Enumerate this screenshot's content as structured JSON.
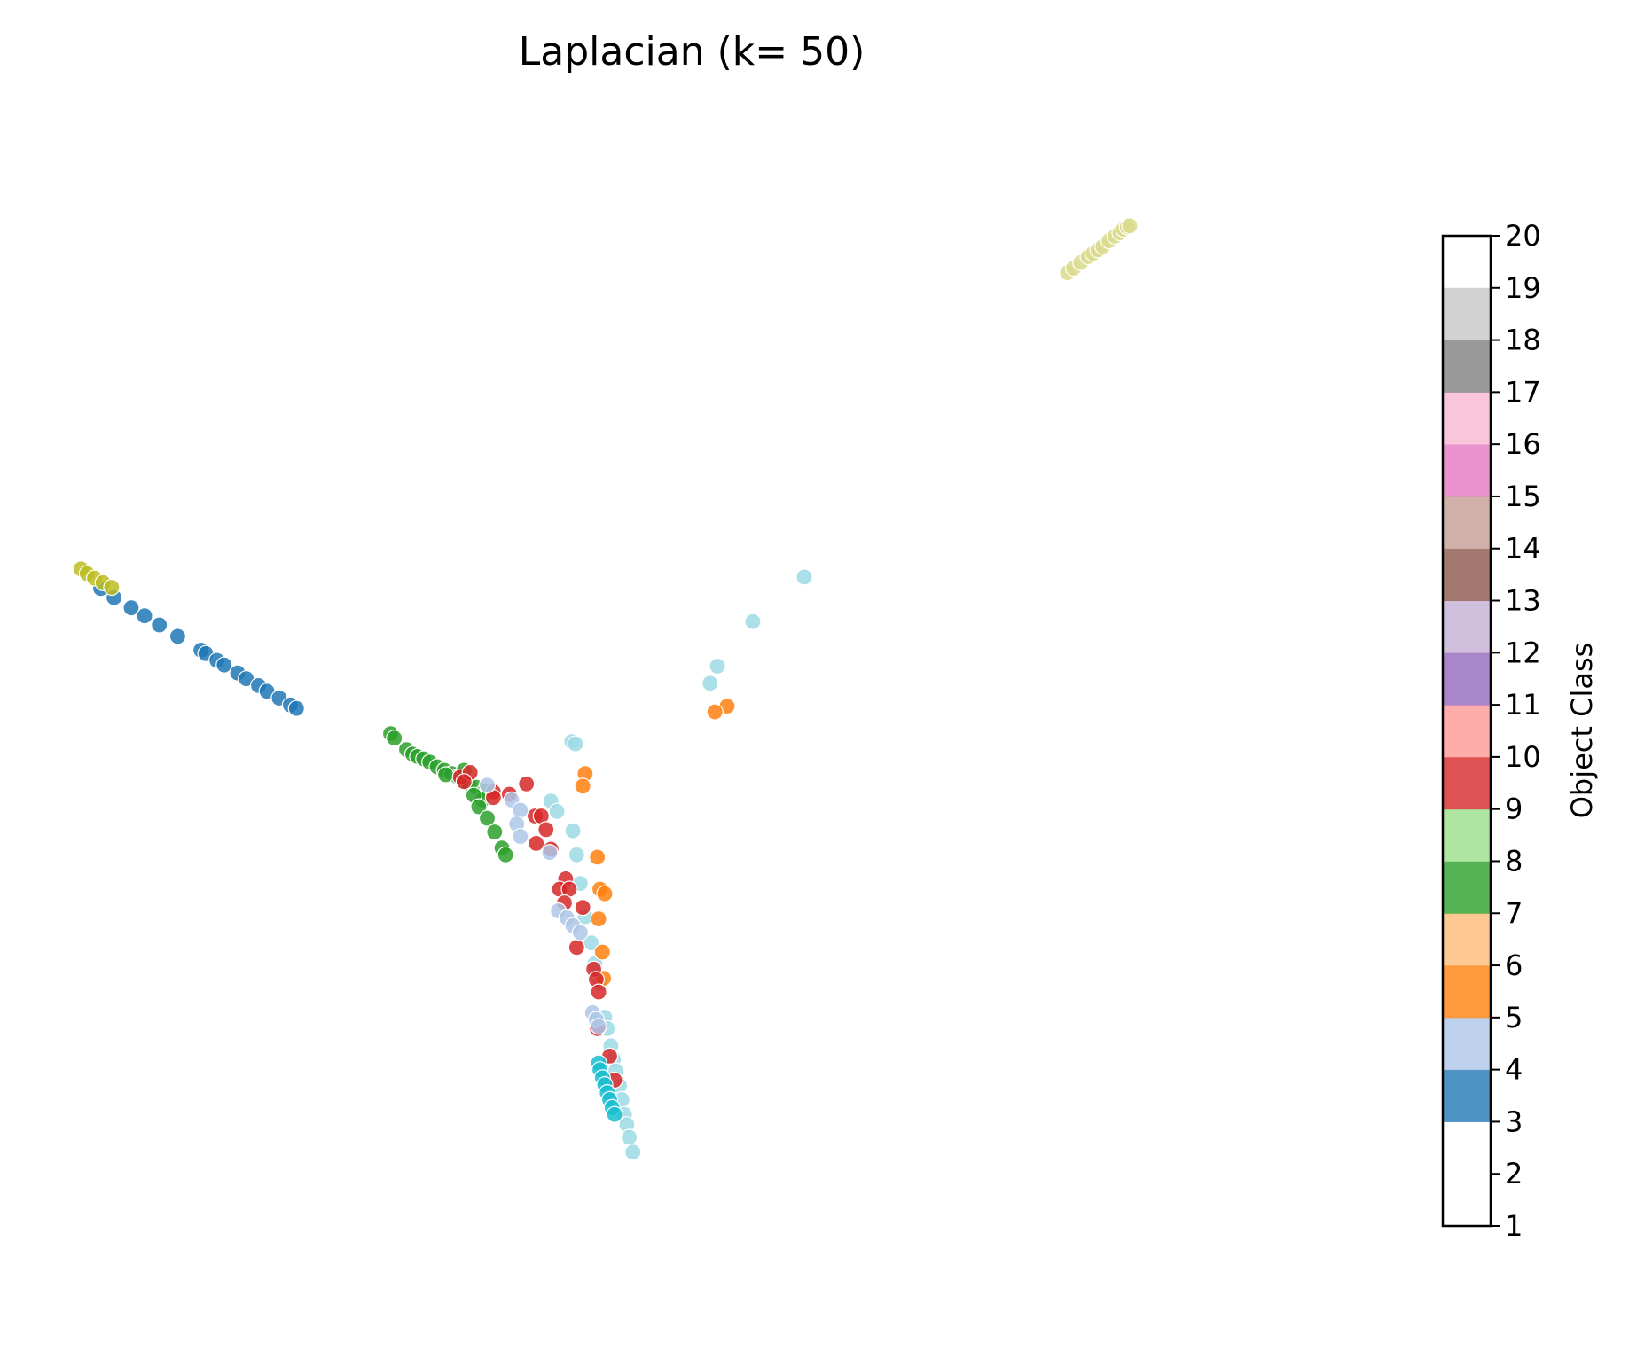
{
  "chart_data": {
    "type": "scatter",
    "title": "Laplacian (k= 50)",
    "xlabel": "",
    "ylabel": "",
    "axes_visible": false,
    "grid": false,
    "xlim": [
      0,
      1
    ],
    "ylim": [
      0,
      1
    ],
    "colorbar": {
      "label": "Object Class",
      "range": [
        1,
        20
      ],
      "ticks": [
        "1",
        "2",
        "3",
        "4",
        "5",
        "6",
        "7",
        "8",
        "9",
        "10",
        "11",
        "12",
        "13",
        "14",
        "15",
        "16",
        "17",
        "18",
        "19",
        "20"
      ],
      "class_colors": {
        "4": "#1f77b4",
        "5": "#aec7e8",
        "6": "#ff7f0e",
        "7": "#ffbb78",
        "8": "#2ca02c",
        "9": "#98df8a",
        "10": "#d62728",
        "11": "#ff9896",
        "12": "#9467bd",
        "13": "#c5b0d5",
        "14": "#8c564b",
        "15": "#c49c94",
        "16": "#e377c2",
        "17": "#f7b6d2",
        "18": "#7f7f7f",
        "19": "#c7c7c7",
        "20": "#bcbd22"
      }
    },
    "marker_colors": {
      "17": "#dbdb8d",
      "4": "#1f77b4",
      "16": "#bcbd22",
      "19": "#9edae5",
      "6": "#ff7f0e",
      "7": "#2ca02c",
      "9": "#d62728",
      "5": "#aec7e8",
      "18": "#17becf"
    },
    "series": [
      {
        "class": 17,
        "points": [
          [
            0.807,
            0.901
          ],
          [
            0.812,
            0.905
          ],
          [
            0.818,
            0.91
          ],
          [
            0.824,
            0.915
          ],
          [
            0.828,
            0.918
          ],
          [
            0.832,
            0.921
          ],
          [
            0.836,
            0.924
          ],
          [
            0.841,
            0.929
          ],
          [
            0.846,
            0.933
          ],
          [
            0.85,
            0.936
          ],
          [
            0.853,
            0.939
          ],
          [
            0.856,
            0.941
          ],
          [
            0.858,
            0.942
          ]
        ]
      },
      {
        "class": 4,
        "points": [
          [
            0.017,
            0.625
          ],
          [
            0.028,
            0.617
          ],
          [
            0.042,
            0.608
          ],
          [
            0.053,
            0.601
          ],
          [
            0.065,
            0.593
          ],
          [
            0.08,
            0.583
          ],
          [
            0.099,
            0.571
          ],
          [
            0.103,
            0.568
          ],
          [
            0.112,
            0.562
          ],
          [
            0.118,
            0.558
          ],
          [
            0.129,
            0.551
          ],
          [
            0.136,
            0.546
          ],
          [
            0.146,
            0.54
          ],
          [
            0.153,
            0.535
          ],
          [
            0.163,
            0.529
          ],
          [
            0.172,
            0.523
          ],
          [
            0.177,
            0.52
          ]
        ]
      },
      {
        "class": 16,
        "points": [
          [
            0.001,
            0.642
          ],
          [
            0.006,
            0.638
          ],
          [
            0.012,
            0.634
          ],
          [
            0.019,
            0.63
          ],
          [
            0.026,
            0.626
          ]
        ]
      },
      {
        "class": 19,
        "points": [
          [
            0.592,
            0.635
          ],
          [
            0.55,
            0.596
          ],
          [
            0.521,
            0.557
          ],
          [
            0.515,
            0.542
          ],
          [
            0.402,
            0.491
          ],
          [
            0.405,
            0.489
          ],
          [
            0.385,
            0.439
          ],
          [
            0.39,
            0.43
          ],
          [
            0.403,
            0.413
          ],
          [
            0.406,
            0.392
          ],
          [
            0.409,
            0.367
          ],
          [
            0.413,
            0.338
          ],
          [
            0.418,
            0.315
          ],
          [
            0.421,
            0.297
          ],
          [
            0.425,
            0.28
          ],
          [
            0.429,
            0.25
          ],
          [
            0.431,
            0.24
          ],
          [
            0.434,
            0.225
          ],
          [
            0.436,
            0.213
          ],
          [
            0.438,
            0.203
          ],
          [
            0.441,
            0.19
          ],
          [
            0.443,
            0.178
          ],
          [
            0.445,
            0.165
          ],
          [
            0.447,
            0.156
          ],
          [
            0.449,
            0.145
          ],
          [
            0.452,
            0.132
          ]
        ]
      },
      {
        "class": 6,
        "points": [
          [
            0.529,
            0.522
          ],
          [
            0.519,
            0.517
          ],
          [
            0.413,
            0.463
          ],
          [
            0.411,
            0.452
          ],
          [
            0.423,
            0.39
          ],
          [
            0.425,
            0.362
          ],
          [
            0.429,
            0.358
          ],
          [
            0.424,
            0.336
          ],
          [
            0.427,
            0.307
          ],
          [
            0.428,
            0.284
          ]
        ]
      },
      {
        "class": 7,
        "points": [
          [
            0.254,
            0.498
          ],
          [
            0.257,
            0.494
          ],
          [
            0.267,
            0.484
          ],
          [
            0.272,
            0.48
          ],
          [
            0.276,
            0.478
          ],
          [
            0.281,
            0.476
          ],
          [
            0.286,
            0.473
          ],
          [
            0.292,
            0.469
          ],
          [
            0.298,
            0.466
          ],
          [
            0.304,
            0.463
          ],
          [
            0.309,
            0.46
          ],
          [
            0.314,
            0.457
          ],
          [
            0.318,
            0.454
          ],
          [
            0.324,
            0.451
          ],
          [
            0.331,
            0.448
          ],
          [
            0.329,
            0.44
          ],
          [
            0.314,
            0.466
          ],
          [
            0.299,
            0.462
          ],
          [
            0.322,
            0.444
          ],
          [
            0.326,
            0.434
          ],
          [
            0.333,
            0.424
          ],
          [
            0.339,
            0.412
          ],
          [
            0.345,
            0.398
          ],
          [
            0.348,
            0.392
          ]
        ]
      },
      {
        "class": 9,
        "points": [
          [
            0.311,
            0.46
          ],
          [
            0.319,
            0.464
          ],
          [
            0.314,
            0.456
          ],
          [
            0.338,
            0.447
          ],
          [
            0.338,
            0.442
          ],
          [
            0.351,
            0.445
          ],
          [
            0.365,
            0.454
          ],
          [
            0.372,
            0.426
          ],
          [
            0.377,
            0.426
          ],
          [
            0.381,
            0.414
          ],
          [
            0.373,
            0.402
          ],
          [
            0.385,
            0.397
          ],
          [
            0.397,
            0.371
          ],
          [
            0.392,
            0.362
          ],
          [
            0.4,
            0.362
          ],
          [
            0.396,
            0.35
          ],
          [
            0.411,
            0.346
          ],
          [
            0.406,
            0.311
          ],
          [
            0.42,
            0.292
          ],
          [
            0.422,
            0.283
          ],
          [
            0.424,
            0.272
          ],
          [
            0.423,
            0.24
          ],
          [
            0.433,
            0.216
          ],
          [
            0.437,
            0.195
          ]
        ]
      },
      {
        "class": 5,
        "points": [
          [
            0.333,
            0.453
          ],
          [
            0.353,
            0.44
          ],
          [
            0.36,
            0.431
          ],
          [
            0.357,
            0.419
          ],
          [
            0.36,
            0.408
          ],
          [
            0.384,
            0.394
          ],
          [
            0.391,
            0.343
          ],
          [
            0.398,
            0.337
          ],
          [
            0.403,
            0.33
          ],
          [
            0.409,
            0.324
          ],
          [
            0.419,
            0.254
          ],
          [
            0.422,
            0.248
          ],
          [
            0.424,
            0.242
          ]
        ]
      },
      {
        "class": 18,
        "points": [
          [
            0.424,
            0.21
          ],
          [
            0.425,
            0.204
          ],
          [
            0.427,
            0.197
          ],
          [
            0.429,
            0.191
          ],
          [
            0.431,
            0.184
          ],
          [
            0.433,
            0.178
          ],
          [
            0.435,
            0.171
          ],
          [
            0.437,
            0.165
          ]
        ]
      }
    ]
  }
}
